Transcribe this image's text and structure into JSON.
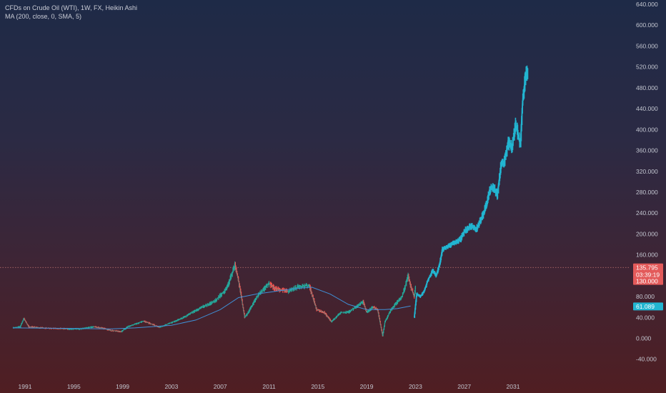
{
  "legend": {
    "title": "CFDs on Crude Oil (WTI), 1W, FX, Heikin Ashi",
    "indicator": "MA (200, close, 0, SMA, 5)"
  },
  "colors": {
    "historic_up": "#26a69a",
    "historic_down": "#ef5350",
    "projection": "#22b5d1",
    "moving_average": "#3f8fd6",
    "price_line": "#b06a6a",
    "tag_red": "#e35a5a",
    "tag_cyan": "#22b5d1"
  },
  "chart_data": {
    "type": "line",
    "title": "CFDs on Crude Oil (WTI), 1W, FX, Heikin Ashi",
    "xlabel": "",
    "ylabel": "",
    "ylim": [
      -60,
      640
    ],
    "xlim": [
      1990,
      2033.2
    ],
    "y_ticks": [
      "640.000",
      "600.000",
      "560.000",
      "520.000",
      "480.000",
      "440.000",
      "400.000",
      "360.000",
      "320.000",
      "280.000",
      "240.000",
      "200.000",
      "160.000",
      "120.000",
      "80.000",
      "40.000",
      "0.000",
      "-40.000"
    ],
    "x_ticks": [
      {
        "label": "1991",
        "x": 1991
      },
      {
        "label": "1995",
        "x": 1995
      },
      {
        "label": "1999",
        "x": 1999
      },
      {
        "label": "2003",
        "x": 2003
      },
      {
        "label": "2007",
        "x": 2007
      },
      {
        "label": "2011",
        "x": 2011
      },
      {
        "label": "2015",
        "x": 2015
      },
      {
        "label": "2019",
        "x": 2019
      },
      {
        "label": "2023",
        "x": 2023
      },
      {
        "label": "2027",
        "x": 2027
      },
      {
        "label": "2031",
        "x": 2031
      }
    ],
    "series": [
      {
        "role": "historic",
        "x": [
          1990.0,
          1990.6,
          1990.9,
          1991.3,
          1992.5,
          1993.5,
          1994.5,
          1995.5,
          1996.6,
          1997.3,
          1998.0,
          1998.9,
          1999.4,
          2000.7,
          2001.5,
          2002.0,
          2003.0,
          2004.0,
          2005.5,
          2006.5,
          2007.5,
          2008.2,
          2008.5,
          2009.0,
          2009.3,
          2010.0,
          2011.0,
          2011.5,
          2012.5,
          2013.5,
          2014.3,
          2014.9,
          2015.5,
          2016.1,
          2016.9,
          2017.5,
          2018.7,
          2019.0,
          2019.5,
          2019.9,
          2020.3,
          2020.5,
          2021.0,
          2021.5,
          2021.9,
          2022.4,
          2022.6,
          2022.9,
          2023.0
        ],
        "y": [
          20,
          22,
          38,
          22,
          20,
          19,
          18,
          18,
          22,
          20,
          15,
          13,
          22,
          33,
          26,
          21,
          30,
          40,
          60,
          70,
          95,
          140,
          110,
          40,
          50,
          80,
          105,
          95,
          90,
          100,
          100,
          55,
          50,
          32,
          50,
          50,
          70,
          50,
          60,
          55,
          5,
          32,
          55,
          70,
          80,
          120,
          100,
          80,
          100
        ]
      },
      {
        "role": "moving-average",
        "x": [
          1990.0,
          1995.0,
          1998.0,
          2000.0,
          2003.0,
          2005.0,
          2007.0,
          2008.5,
          2010.0,
          2011.5,
          2013.0,
          2014.5,
          2016.0,
          2017.5,
          2019.0,
          2020.5,
          2021.5,
          2022.6
        ],
        "y": [
          20,
          19,
          18,
          20,
          25,
          35,
          55,
          78,
          85,
          90,
          95,
          98,
          85,
          65,
          55,
          55,
          57,
          62
        ]
      },
      {
        "role": "projection",
        "x": [
          2022.9,
          2023.1,
          2023.4,
          2023.7,
          2024.0,
          2024.4,
          2024.7,
          2025.0,
          2025.2,
          2025.5,
          2025.9,
          2026.3,
          2026.7,
          2027.0,
          2027.5,
          2028.0,
          2028.5,
          2028.8,
          2029.1,
          2029.4,
          2029.7,
          2030.0,
          2030.3,
          2030.6,
          2030.9,
          2031.2,
          2031.4,
          2031.6,
          2031.7,
          2031.8,
          2032.0,
          2032.2
        ],
        "y": [
          40,
          85,
          80,
          90,
          110,
          130,
          120,
          145,
          170,
          175,
          180,
          185,
          190,
          205,
          215,
          210,
          235,
          255,
          285,
          290,
          275,
          330,
          340,
          375,
          365,
          410,
          390,
          370,
          420,
          460,
          500,
          515
        ]
      }
    ],
    "price_tags": [
      {
        "value": 135.795,
        "label": "135.795",
        "color": "tag_red"
      },
      {
        "value": 122.0,
        "label": "03:39:19",
        "color": "tag_red"
      },
      {
        "value": 110.0,
        "label": "130.000",
        "color": "tag_red"
      },
      {
        "value": 61.089,
        "label": "61.089",
        "color": "tag_cyan"
      }
    ],
    "price_line_value": 135.795,
    "grid": false,
    "legend_position": "top-left"
  }
}
